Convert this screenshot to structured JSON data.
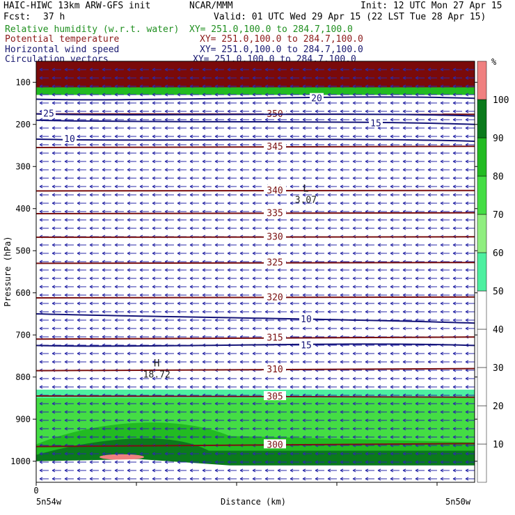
{
  "header": {
    "title": "HAIC-HIWC 13km ARW-GFS init",
    "center": "NCAR/MMM",
    "init": "Init: 12 UTC Mon 27 Apr 15",
    "fcst_label": "Fcst:",
    "fcst_value": "37 h",
    "valid": "Valid: 01 UTC Wed 29 Apr 15 (22 LST Tue 28 Apr 15)"
  },
  "fields": [
    {
      "name": "Relative humidity (w.r.t. water)",
      "xy": "XY= 251.0,100.0 to 284.7,100.0",
      "color": "#1f8f1f"
    },
    {
      "name": "Potential temperature",
      "xy": "XY= 251.0,100.0 to 284.7,100.0",
      "color": "#8b1a1a"
    },
    {
      "name": "Horizontal wind speed",
      "xy": "XY= 251.0,100.0 to 284.7,100.0",
      "color": "#191970"
    },
    {
      "name": "Circulation vectors",
      "xy": "XY= 251.0,100.0 to 284.7,100.0",
      "color": "#191970"
    }
  ],
  "colors": {
    "theta": "#7a1010",
    "wind": "#141478",
    "vector": "#2a2aa8",
    "rh": [
      "#ffffff",
      "#ffffff",
      "#ffffff",
      "#ffffff",
      "#ffffff",
      "#4df0a0",
      "#90ee80",
      "#44dd44",
      "#22bb22",
      "#0b7a1c",
      "#f08080"
    ]
  },
  "chart_data": {
    "type": "cross-section",
    "ylabel": "Pressure (hPa)",
    "xlabel": "Distance (km)",
    "x_tick_labels": [
      "0"
    ],
    "x_endpoints": {
      "left": "5n54w",
      "right": "5n50w"
    },
    "y_ticks": [
      100,
      200,
      300,
      400,
      500,
      600,
      700,
      800,
      900,
      1000
    ],
    "ylim": [
      1050,
      50
    ],
    "colorbar": {
      "unit": "%",
      "levels": [
        10,
        20,
        30,
        40,
        50,
        60,
        70,
        80,
        90,
        100
      ],
      "colors": [
        "#ffffff",
        "#ffffff",
        "#ffffff",
        "#ffffff",
        "#4df0a0",
        "#90ee80",
        "#44dd44",
        "#22bb22",
        "#0b7a1c",
        "#f08080"
      ]
    },
    "theta_contours": [
      {
        "label": "350",
        "p_left": 175,
        "p_right": 176
      },
      {
        "label": "345",
        "p_left": 255,
        "p_right": 252
      },
      {
        "label": "340",
        "p_left": 358,
        "p_right": 357
      },
      {
        "label": "335",
        "p_left": 412,
        "p_right": 410
      },
      {
        "label": "330",
        "p_left": 468,
        "p_right": 467
      },
      {
        "label": "325",
        "p_left": 530,
        "p_right": 528
      },
      {
        "label": "320",
        "p_left": 612,
        "p_right": 610
      },
      {
        "label": "315",
        "p_left": 710,
        "p_right": 705
      },
      {
        "label": "310",
        "p_left": 785,
        "p_right": 780
      },
      {
        "label": "305",
        "p_left": 845,
        "p_right": 848
      },
      {
        "label": "300",
        "p_left": 965,
        "p_right": 958
      }
    ],
    "wind_contours": [
      {
        "label": "10",
        "p_left": 235,
        "p_right": 240
      },
      {
        "label": "15",
        "p_left": 190,
        "p_right": 200
      },
      {
        "label": "20",
        "p_left": 140,
        "p_right": 138
      },
      {
        "label": "25",
        "p_left": 175,
        "p_right": 180
      },
      {
        "label": "10",
        "p_left": 650,
        "p_right": 672
      },
      {
        "label": "15",
        "p_left": 725,
        "p_right": 725
      }
    ],
    "annotations": [
      {
        "text": "L",
        "note": "3.07",
        "x_frac": 0.615,
        "p": 370
      },
      {
        "text": "H",
        "note": "18.72",
        "x_frac": 0.275,
        "p": 785
      }
    ],
    "other_labels": [
      "300",
      "305",
      "315",
      "H",
      "20"
    ]
  }
}
